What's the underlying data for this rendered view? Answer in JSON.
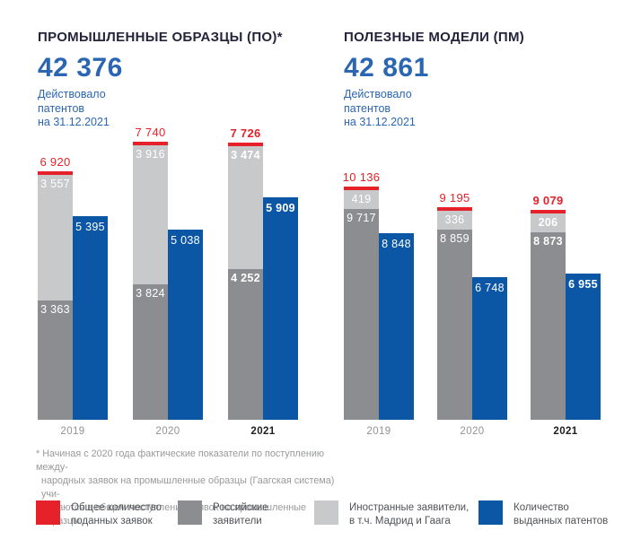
{
  "colors": {
    "total_red": "#e62129",
    "russian_dark_gray": "#8b8d90",
    "foreign_light_gray": "#c8c9cb",
    "granted_blue": "#0b57a6",
    "title_navy": "#24243c",
    "accent_blue_text": "#2b66b2",
    "year_gray": "#909295",
    "footnote_gray": "#97999b",
    "legend_text_gray": "#505257"
  },
  "sections": [
    {
      "title": "ПРОМЫШЛЕННЫЕ ОБРАЗЦЫ (ПО)*",
      "big_number": "42 376",
      "caption_lines": [
        "Действовало",
        "патентов",
        "на 31.12.2021"
      ]
    },
    {
      "title": "ПОЛЕЗНЫЕ МОДЕЛИ (ПМ)",
      "big_number": "42 861",
      "caption_lines": [
        "Действовало",
        "патентов",
        "на 31.12.2021"
      ]
    }
  ],
  "chart_data": [
    {
      "type": "bar",
      "title": "ПРОМЫШЛЕННЫЕ ОБРАЗЦЫ (ПО)*",
      "categories": [
        "2019",
        "2020",
        "2021"
      ],
      "series": [
        {
          "name": "Общее количество поданных заявок",
          "role": "total",
          "values": [
            6920,
            7740,
            7726
          ]
        },
        {
          "name": "Российские заявители",
          "role": "stack_bottom",
          "values": [
            3363,
            3824,
            4252
          ]
        },
        {
          "name": "Иностранные заявители, в т.ч. Мадрид и Гаага",
          "role": "stack_top",
          "values": [
            3557,
            3916,
            3474
          ]
        },
        {
          "name": "Количество выданных патентов",
          "role": "side_bar",
          "values": [
            5395,
            5038,
            5909
          ]
        }
      ],
      "highlight_category": "2021",
      "grid": false,
      "legend_position": "bottom"
    },
    {
      "type": "bar",
      "title": "ПОЛЕЗНЫЕ МОДЕЛИ (ПМ)",
      "categories": [
        "2019",
        "2020",
        "2021"
      ],
      "series": [
        {
          "name": "Общее количество поданных заявок",
          "role": "total",
          "values": [
            10136,
            9195,
            9079
          ]
        },
        {
          "name": "Российские заявители",
          "role": "stack_bottom",
          "values": [
            9717,
            8859,
            8873
          ]
        },
        {
          "name": "Иностранные заявители, в т.ч. Мадрид и Гаага",
          "role": "stack_top",
          "values": [
            419,
            336,
            206
          ]
        },
        {
          "name": "Количество выданных патентов",
          "role": "side_bar",
          "values": [
            8848,
            6748,
            6955
          ]
        }
      ],
      "highlight_category": "2021",
      "grid": false,
      "legend_position": "bottom"
    }
  ],
  "footnote_lines": [
    "* Начиная с 2020 года фактические показатели по поступлению между-",
    "народных заявок на промышленные образцы (Гаагская система) учи-",
    "тываются в общем поступлении заявок на промышленные образцы"
  ],
  "legend": [
    {
      "key": "total",
      "color": "#e62129",
      "label_lines": [
        "Общее количество",
        "поданных заявок"
      ]
    },
    {
      "key": "russian",
      "color": "#8b8d90",
      "label_lines": [
        "Российские",
        "заявители"
      ]
    },
    {
      "key": "foreign",
      "color": "#c8c9cb",
      "label_lines": [
        "Иностранные заявители,",
        "в т.ч. Мадрид и Гаага"
      ]
    },
    {
      "key": "granted",
      "color": "#0b57a6",
      "label_lines": [
        "Количество",
        "выданных патентов"
      ]
    }
  ]
}
